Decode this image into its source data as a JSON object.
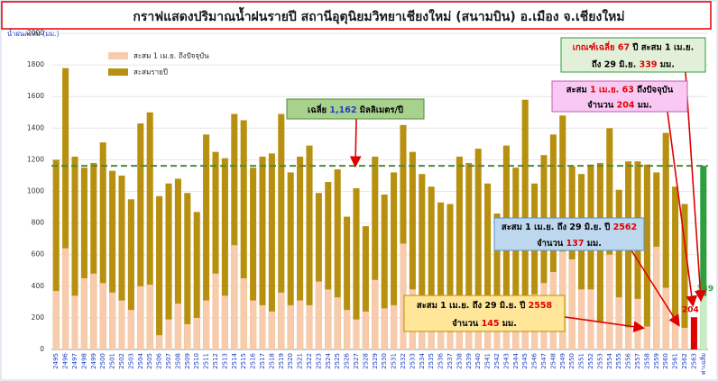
{
  "chart_data": {
    "type": "overlap_bar",
    "title": "กราฟแสดงปริมาณน้ำฝนรายปี สถานีอุตุนิยมวิทยาเชียงใหม่ (สนามบิน) อ.เมือง จ.เชียงใหม่",
    "y_label": "น้ำฝนสะสม (มม.)",
    "categories": [
      "2495",
      "2496",
      "2497",
      "2498",
      "2499",
      "2500",
      "2501",
      "2502",
      "2503",
      "2504",
      "2505",
      "2506",
      "2507",
      "2508",
      "2509",
      "2510",
      "2511",
      "2512",
      "2513",
      "2514",
      "2515",
      "2516",
      "2517",
      "2518",
      "2519",
      "2520",
      "2521",
      "2522",
      "2523",
      "2524",
      "2525",
      "2526",
      "2527",
      "2528",
      "2529",
      "2530",
      "2531",
      "2532",
      "2533",
      "2534",
      "2535",
      "2536",
      "2537",
      "2538",
      "2539",
      "2540",
      "2541",
      "2542",
      "2543",
      "2544",
      "2545",
      "2546",
      "2547",
      "2548",
      "2549",
      "2550",
      "2551",
      "2552",
      "2553",
      "2554",
      "2555",
      "2556",
      "2557",
      "2558",
      "2559",
      "2560",
      "2561",
      "2562",
      "2563",
      "ค่าเฉลี่ย"
    ],
    "series": [
      {
        "name": "สะสมรายปี",
        "color": "#b8900f",
        "point_colors": {
          "ค่าเฉลี่ย": "#2e9e3e"
        },
        "values": [
          1200,
          1780,
          1220,
          1150,
          1180,
          1310,
          1130,
          1100,
          950,
          1430,
          1500,
          970,
          1050,
          1080,
          990,
          870,
          1360,
          1250,
          1210,
          1490,
          1450,
          1150,
          1220,
          1240,
          1490,
          1120,
          1220,
          1290,
          990,
          1060,
          1140,
          840,
          1020,
          780,
          1220,
          980,
          1120,
          1420,
          1250,
          1110,
          1030,
          930,
          920,
          1220,
          1180,
          1270,
          1050,
          860,
          1290,
          1150,
          1580,
          1050,
          1230,
          1360,
          1480,
          1160,
          1110,
          1170,
          1180,
          1400,
          1010,
          1190,
          1190,
          1170,
          1120,
          1370,
          1030,
          920,
          null,
          1162
        ]
      },
      {
        "name": "สะสม 1 เม.ย. ถึงปัจจุบัน",
        "color": "#f8cbad",
        "point_colors": {
          "2563": "#e00000",
          "ค่าเฉลี่ย": "#c9ecc4"
        },
        "label_colors": {
          "2563": "#e00000",
          "ค่าเฉลี่ย": "#2e9e3e"
        },
        "data_labels": [
          "2563",
          "ค่าเฉลี่ย"
        ],
        "values": [
          370,
          640,
          340,
          450,
          480,
          420,
          360,
          310,
          250,
          400,
          410,
          90,
          190,
          290,
          160,
          200,
          310,
          480,
          340,
          660,
          450,
          310,
          280,
          240,
          360,
          280,
          310,
          280,
          430,
          380,
          330,
          250,
          190,
          240,
          440,
          260,
          280,
          670,
          380,
          300,
          300,
          200,
          110,
          220,
          320,
          280,
          270,
          170,
          230,
          210,
          200,
          350,
          420,
          490,
          620,
          570,
          380,
          380,
          170,
          600,
          330,
          140,
          320,
          145,
          650,
          390,
          180,
          137,
          204,
          339
        ]
      }
    ],
    "average_line": {
      "value": 1162,
      "color": "#4e8a3a"
    },
    "ylim": [
      0,
      2000
    ],
    "yticks": [
      0,
      200,
      400,
      600,
      800,
      1000,
      1200,
      1400,
      1600,
      1800,
      2000
    ],
    "grid": true,
    "annotations": [
      {
        "fill": "#a9d18e",
        "border": "#4e8a3a",
        "lines": [
          [
            {
              "text": "เฉลี่ย ",
              "color": "#000"
            },
            {
              "text": "1,162",
              "color": "#1f3fbf"
            },
            {
              "text": " มิลลิเมตร/ปี",
              "color": "#000"
            }
          ]
        ]
      },
      {
        "fill": "#e2f0d9",
        "border": "#2e9e3e",
        "lines": [
          [
            {
              "text": "เกณฑ์เฉลี่ย ",
              "color": "#e00000"
            },
            {
              "text": "67",
              "color": "#e00000"
            },
            {
              "text": " ปี สะสม 1 เม.ย.",
              "color": "#000"
            }
          ],
          [
            {
              "text": "ถึง 29 มิ.ย. ",
              "color": "#000"
            },
            {
              "text": "339",
              "color": "#e00000"
            },
            {
              "text": " มม.",
              "color": "#000"
            }
          ]
        ]
      },
      {
        "fill": "#f9c9f3",
        "border": "#c060b0",
        "lines": [
          [
            {
              "text": "สะสม ",
              "color": "#000"
            },
            {
              "text": "1 เม.ย. 63",
              "color": "#e00000"
            },
            {
              "text": " ถึงปัจจุบัน",
              "color": "#000"
            }
          ],
          [
            {
              "text": "จำนวน ",
              "color": "#000"
            },
            {
              "text": "204",
              "color": "#e00000"
            },
            {
              "text": " มม.",
              "color": "#000"
            }
          ]
        ]
      },
      {
        "fill": "#bdd7ee",
        "border": "#5b8fc7",
        "lines": [
          [
            {
              "text": "สะสม 1 เม.ย. ถึง 29 มิ.ย. ปี ",
              "color": "#000"
            },
            {
              "text": "2562",
              "color": "#e00000"
            }
          ],
          [
            {
              "text": "จำนวน ",
              "color": "#000"
            },
            {
              "text": "137",
              "color": "#e00000"
            },
            {
              "text": " มม.",
              "color": "#000"
            }
          ]
        ]
      },
      {
        "fill": "#ffe699",
        "border": "#c09000",
        "lines": [
          [
            {
              "text": "สะสม 1 เม.ย. ถึง 29 มิ.ย. ปี ",
              "color": "#000"
            },
            {
              "text": "2558",
              "color": "#e00000"
            }
          ],
          [
            {
              "text": "จำนวน ",
              "color": "#000"
            },
            {
              "text": "145",
              "color": "#e00000"
            },
            {
              "text": " มม.",
              "color": "#000"
            }
          ]
        ]
      }
    ]
  }
}
